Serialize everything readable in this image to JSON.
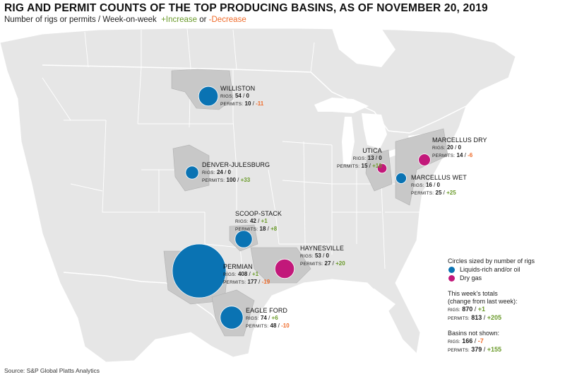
{
  "title": "RIG AND PERMIT COUNTS OF THE TOP PRODUCING BASINS, AS OF NOVEMBER 20, 2019",
  "subtitle": {
    "prefix": "Number of rigs or permits / Week-on-week",
    "increase": "+Increase",
    "or": "or",
    "decrease": "-Decrease"
  },
  "colors": {
    "liquids": "#0a73b3",
    "dry_gas": "#c2187a",
    "increase": "#6a9a2a",
    "decrease": "#ef6b2a",
    "basin": "#c8c8c8",
    "land": "#e6e6e6",
    "water": "#ffffff"
  },
  "rigs_key": "RIGS:",
  "permits_key": "PERMITS:",
  "basins": [
    {
      "name": "WILLISTON",
      "type": "liquids",
      "rigs": "54",
      "rigs_change": "0",
      "permits": "10",
      "permits_change": "-11"
    },
    {
      "name": "DENVER-JULESBURG",
      "type": "liquids",
      "rigs": "24",
      "rigs_change": "0",
      "permits": "100",
      "permits_change": "+33"
    },
    {
      "name": "SCOOP-STACK",
      "type": "liquids",
      "rigs": "42",
      "rigs_change": "+1",
      "permits": "18",
      "permits_change": "+8"
    },
    {
      "name": "PERMIAN",
      "type": "liquids",
      "rigs": "408",
      "rigs_change": "+1",
      "permits": "177",
      "permits_change": "-19"
    },
    {
      "name": "EAGLE FORD",
      "type": "liquids",
      "rigs": "74",
      "rigs_change": "+6",
      "permits": "48",
      "permits_change": "-10"
    },
    {
      "name": "HAYNESVILLE",
      "type": "dry_gas",
      "rigs": "53",
      "rigs_change": "0",
      "permits": "27",
      "permits_change": "+20"
    },
    {
      "name": "UTICA",
      "type": "dry_gas",
      "rigs": "13",
      "rigs_change": "0",
      "permits": "15",
      "permits_change": "+10"
    },
    {
      "name": "MARCELLUS DRY",
      "type": "dry_gas",
      "rigs": "20",
      "rigs_change": "0",
      "permits": "14",
      "permits_change": "-6"
    },
    {
      "name": "MARCELLUS WET",
      "type": "liquids",
      "rigs": "16",
      "rigs_change": "0",
      "permits": "25",
      "permits_change": "+25"
    }
  ],
  "legend": {
    "title": "Circles sized by number of rigs",
    "liquids": "Liquids-rich and/or oil",
    "dry_gas": "Dry gas"
  },
  "totals": {
    "title": "This week's totals",
    "subtitle": "(change from last week):",
    "rigs": "870",
    "rigs_change": "+1",
    "permits": "813",
    "permits_change": "+205"
  },
  "not_shown": {
    "title": "Basins not shown:",
    "rigs": "166",
    "rigs_change": "-7",
    "permits": "379",
    "permits_change": "+155"
  },
  "source": "Source: S&P Global Platts Analytics"
}
